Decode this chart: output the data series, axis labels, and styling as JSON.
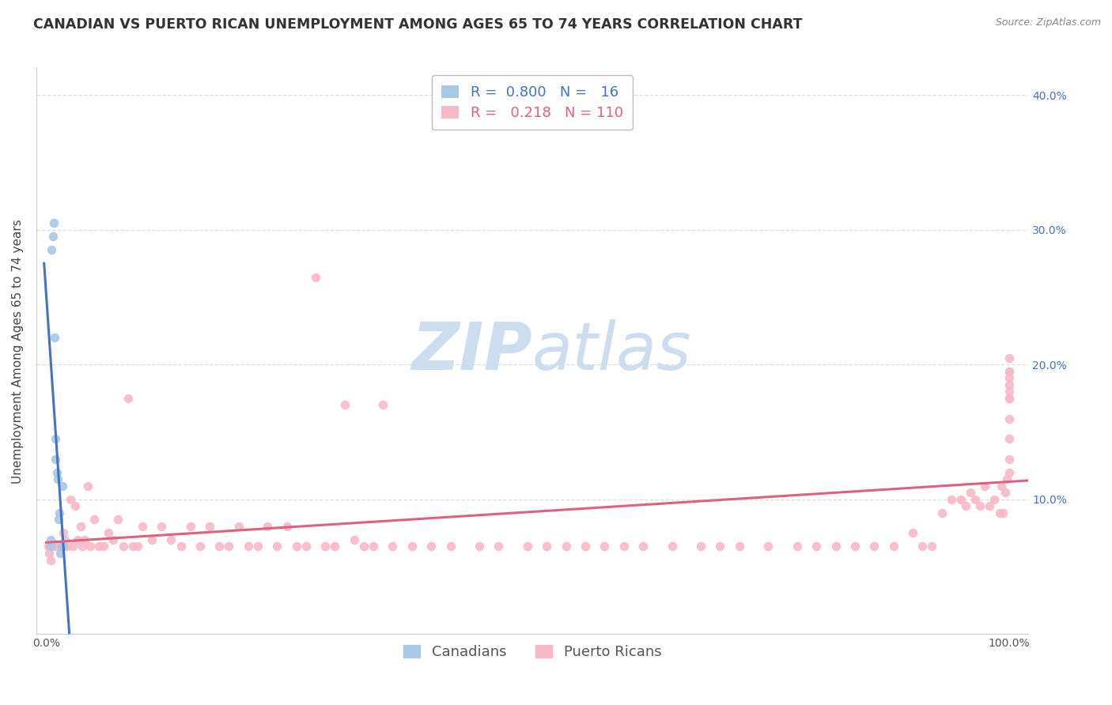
{
  "title": "CANADIAN VS PUERTO RICAN UNEMPLOYMENT AMONG AGES 65 TO 74 YEARS CORRELATION CHART",
  "source": "Source: ZipAtlas.com",
  "ylabel": "Unemployment Among Ages 65 to 74 years",
  "xlim": [
    0.0,
    1.0
  ],
  "ylim": [
    0.0,
    0.42
  ],
  "x_ticks": [
    0.0,
    0.1,
    0.2,
    0.3,
    0.4,
    0.5,
    0.6,
    0.7,
    0.8,
    0.9,
    1.0
  ],
  "x_tick_labels": [
    "0.0%",
    "",
    "",
    "",
    "",
    "",
    "",
    "",
    "",
    "",
    "100.0%"
  ],
  "y_ticks": [
    0.0,
    0.1,
    0.2,
    0.3,
    0.4
  ],
  "y_tick_labels_right": [
    "",
    "10.0%",
    "20.0%",
    "30.0%",
    "40.0%"
  ],
  "canadian_color": "#a8c8e8",
  "puerto_rican_color": "#f9b8c8",
  "canadian_line_color": "#4472c4",
  "puerto_rican_line_color": "#e06080",
  "legend_R_canadian": "0.800",
  "legend_N_canadian": "16",
  "legend_R_puerto_rican": "0.218",
  "legend_N_puerto_rican": "110",
  "watermark_zip": "ZIP",
  "watermark_atlas": "atlas",
  "background_color": "#ffffff",
  "grid_color": "#dddddd",
  "title_fontsize": 12.5,
  "axis_label_fontsize": 11,
  "tick_label_fontsize": 10,
  "legend_fontsize": 13,
  "watermark_fontsize": 60,
  "canadian_points_x": [
    0.005,
    0.005,
    0.006,
    0.007,
    0.008,
    0.009,
    0.01,
    0.01,
    0.011,
    0.012,
    0.013,
    0.014,
    0.015,
    0.016,
    0.017,
    0.018
  ],
  "canadian_points_y": [
    0.065,
    0.07,
    0.285,
    0.295,
    0.305,
    0.22,
    0.13,
    0.145,
    0.12,
    0.115,
    0.085,
    0.09,
    0.06,
    0.065,
    0.11,
    0.065
  ],
  "puerto_rican_points_x": [
    0.002,
    0.003,
    0.004,
    0.005,
    0.007,
    0.01,
    0.012,
    0.015,
    0.018,
    0.02,
    0.022,
    0.025,
    0.028,
    0.03,
    0.033,
    0.036,
    0.038,
    0.04,
    0.043,
    0.046,
    0.05,
    0.055,
    0.06,
    0.065,
    0.07,
    0.075,
    0.08,
    0.085,
    0.09,
    0.095,
    0.1,
    0.11,
    0.12,
    0.13,
    0.14,
    0.15,
    0.16,
    0.17,
    0.18,
    0.19,
    0.2,
    0.21,
    0.22,
    0.23,
    0.24,
    0.25,
    0.26,
    0.27,
    0.28,
    0.29,
    0.3,
    0.31,
    0.32,
    0.33,
    0.34,
    0.35,
    0.36,
    0.38,
    0.4,
    0.42,
    0.45,
    0.47,
    0.5,
    0.52,
    0.54,
    0.56,
    0.58,
    0.6,
    0.62,
    0.65,
    0.68,
    0.7,
    0.72,
    0.75,
    0.78,
    0.8,
    0.82,
    0.84,
    0.86,
    0.88,
    0.9,
    0.91,
    0.92,
    0.93,
    0.94,
    0.95,
    0.955,
    0.96,
    0.965,
    0.97,
    0.975,
    0.98,
    0.985,
    0.99,
    0.992,
    0.994,
    0.996,
    0.998,
    1.0,
    1.0,
    1.0,
    1.0,
    1.0,
    1.0,
    1.0,
    1.0,
    1.0,
    1.0,
    1.0,
    1.0
  ],
  "puerto_rican_points_y": [
    0.065,
    0.06,
    0.065,
    0.055,
    0.065,
    0.065,
    0.065,
    0.065,
    0.075,
    0.07,
    0.065,
    0.1,
    0.065,
    0.095,
    0.07,
    0.08,
    0.065,
    0.07,
    0.11,
    0.065,
    0.085,
    0.065,
    0.065,
    0.075,
    0.07,
    0.085,
    0.065,
    0.175,
    0.065,
    0.065,
    0.08,
    0.07,
    0.08,
    0.07,
    0.065,
    0.08,
    0.065,
    0.08,
    0.065,
    0.065,
    0.08,
    0.065,
    0.065,
    0.08,
    0.065,
    0.08,
    0.065,
    0.065,
    0.265,
    0.065,
    0.065,
    0.17,
    0.07,
    0.065,
    0.065,
    0.17,
    0.065,
    0.065,
    0.065,
    0.065,
    0.065,
    0.065,
    0.065,
    0.065,
    0.065,
    0.065,
    0.065,
    0.065,
    0.065,
    0.065,
    0.065,
    0.065,
    0.065,
    0.065,
    0.065,
    0.065,
    0.065,
    0.065,
    0.065,
    0.065,
    0.075,
    0.065,
    0.065,
    0.09,
    0.1,
    0.1,
    0.095,
    0.105,
    0.1,
    0.095,
    0.11,
    0.095,
    0.1,
    0.09,
    0.11,
    0.09,
    0.105,
    0.115,
    0.12,
    0.13,
    0.145,
    0.16,
    0.175,
    0.195,
    0.205,
    0.19,
    0.18,
    0.185,
    0.175,
    0.195
  ]
}
